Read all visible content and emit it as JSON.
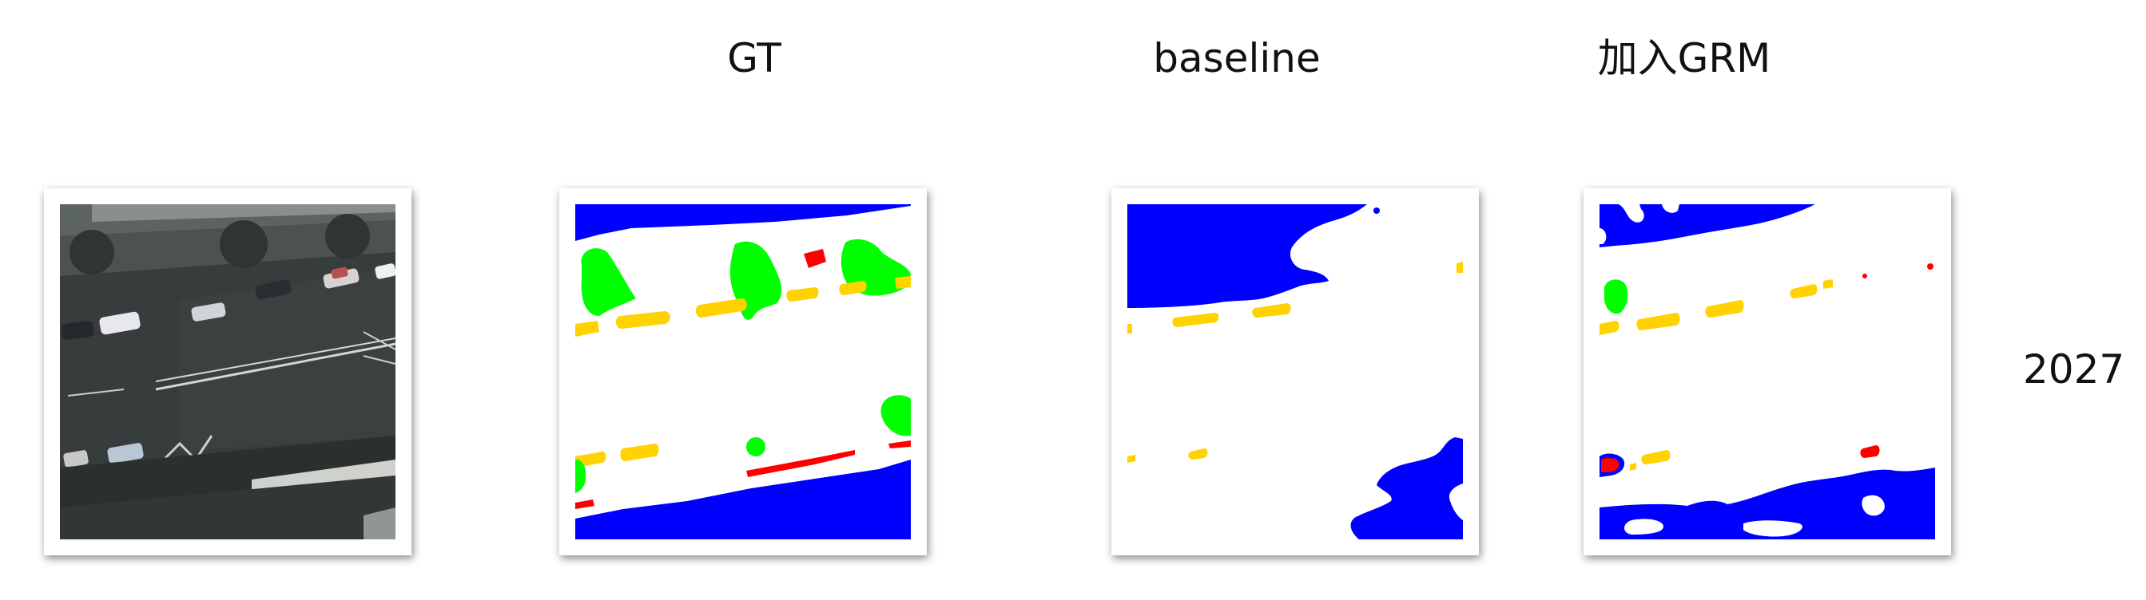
{
  "columns": [
    {
      "id": "image",
      "label": ""
    },
    {
      "id": "gt",
      "label": "GT"
    },
    {
      "id": "baseline",
      "label": "baseline"
    },
    {
      "id": "grm",
      "label": "加入GRM"
    }
  ],
  "sample_id": "2027",
  "colors": {
    "background": "#ffffff",
    "class_blue": "#0000ff",
    "class_green": "#00ff00",
    "class_yellow": "#ffd200",
    "class_red": "#ff0000",
    "road": "#3a3f3f"
  }
}
